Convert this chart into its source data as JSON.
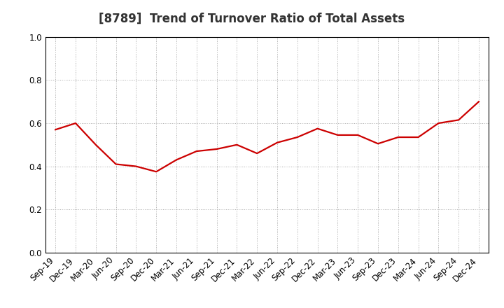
{
  "title": "[8789]  Trend of Turnover Ratio of Total Assets",
  "labels": [
    "Sep-19",
    "Dec-19",
    "Mar-20",
    "Jun-20",
    "Sep-20",
    "Dec-20",
    "Mar-21",
    "Jun-21",
    "Sep-21",
    "Dec-21",
    "Mar-22",
    "Jun-22",
    "Sep-22",
    "Dec-22",
    "Mar-23",
    "Jun-23",
    "Sep-23",
    "Dec-23",
    "Mar-24",
    "Jun-24",
    "Sep-24",
    "Dec-24"
  ],
  "values": [
    0.57,
    0.6,
    0.5,
    0.41,
    0.4,
    0.375,
    0.43,
    0.47,
    0.48,
    0.5,
    0.46,
    0.51,
    0.535,
    0.575,
    0.545,
    0.545,
    0.505,
    0.535,
    0.535,
    0.6,
    0.615,
    0.7
  ],
  "line_color": "#cc0000",
  "line_width": 1.6,
  "ylim": [
    0.0,
    1.0
  ],
  "yticks": [
    0.0,
    0.2,
    0.4,
    0.6,
    0.8,
    1.0
  ],
  "grid_color": "#aaaaaa",
  "bg_color": "#ffffff",
  "title_fontsize": 12,
  "tick_fontsize": 8.5,
  "title_color": "#333333"
}
